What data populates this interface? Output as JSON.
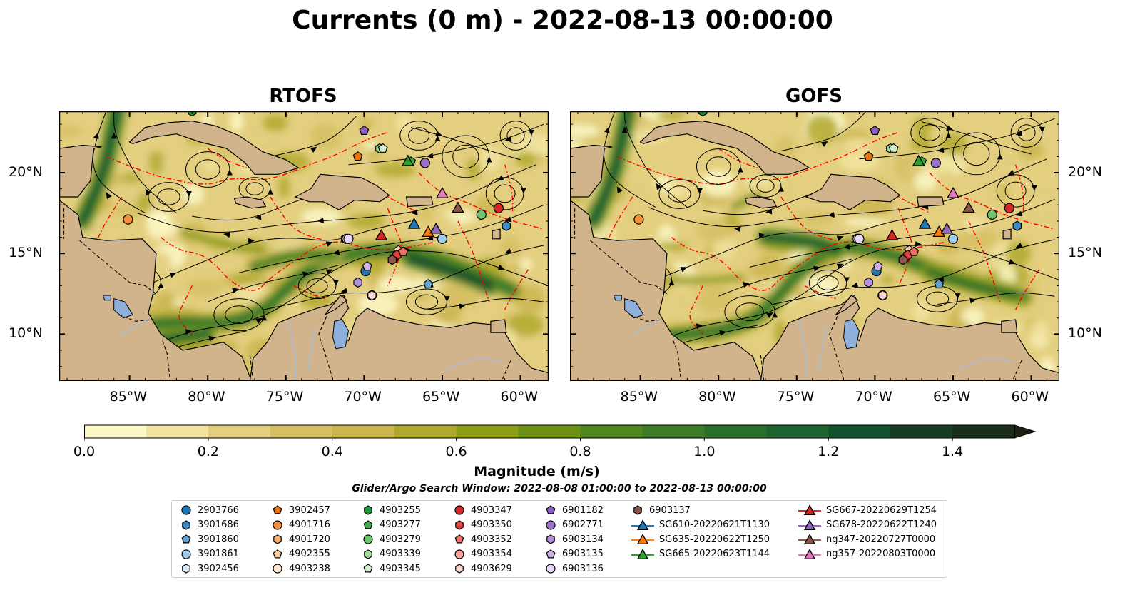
{
  "title": "Currents (0 m) - 2022-08-13 00:00:00",
  "panels": [
    {
      "title": "RTOFS",
      "variant": "rtofs"
    },
    {
      "title": "GOFS",
      "variant": "gofs"
    }
  ],
  "x_tick_labels": [
    "85°W",
    "80°W",
    "75°W",
    "70°W",
    "65°W",
    "60°W"
  ],
  "y_tick_labels": [
    "20°N",
    "15°N",
    "10°N"
  ],
  "colorbar": {
    "label": "Magnitude (m/s)",
    "tick_labels": [
      "0.0",
      "0.2",
      "0.4",
      "0.6",
      "0.8",
      "1.0",
      "1.2",
      "1.4"
    ],
    "colors": [
      "#fcf7c6",
      "#f1e4a0",
      "#e3cf7f",
      "#d6c064",
      "#cbb54f",
      "#b0a92e",
      "#8d9d14",
      "#6c9115",
      "#528621",
      "#3e7c29",
      "#2a6f2c",
      "#1c632f",
      "#12502c",
      "#163d23",
      "#182d1a",
      "#1b2214"
    ]
  },
  "colors": {
    "land": "#d2b48c",
    "lake": "#8fb0dd",
    "river": "#a8bed8",
    "eez_line": "#ff0000"
  },
  "search_window": "Glider/Argo Search Window: 2022-08-08 01:00:00 to 2022-08-13 00:00:00",
  "legend": {
    "columns": [
      [
        {
          "label": "2903766",
          "marker": "circle",
          "color": "#1f77b4"
        },
        {
          "label": "3901686",
          "marker": "hexagon",
          "color": "#3d8cc8"
        },
        {
          "label": "3901860",
          "marker": "pentagon",
          "color": "#5fa2d6"
        },
        {
          "label": "3901861",
          "marker": "circle",
          "color": "#9fcbed"
        },
        {
          "label": "3902456",
          "marker": "hexagon",
          "color": "#d7e9f7"
        }
      ],
      [
        {
          "label": "3902457",
          "marker": "pentagon",
          "color": "#e8730f"
        },
        {
          "label": "4901716",
          "marker": "circle",
          "color": "#f68f3c"
        },
        {
          "label": "4901720",
          "marker": "hexagon",
          "color": "#f8b070"
        },
        {
          "label": "4902355",
          "marker": "pentagon",
          "color": "#fbcfa2"
        },
        {
          "label": "4903238",
          "marker": "circle",
          "color": "#fde7cf"
        }
      ],
      [
        {
          "label": "4903255",
          "marker": "hexagon",
          "color": "#1f9a3a"
        },
        {
          "label": "4903277",
          "marker": "pentagon",
          "color": "#3aad4b"
        },
        {
          "label": "4903279",
          "marker": "circle",
          "color": "#6cc66a"
        },
        {
          "label": "4903339",
          "marker": "hexagon",
          "color": "#a2dc9a"
        },
        {
          "label": "4903345",
          "marker": "pentagon",
          "color": "#d6f1cf"
        }
      ],
      [
        {
          "label": "4903347",
          "marker": "circle",
          "color": "#d62728"
        },
        {
          "label": "4903350",
          "marker": "hexagon",
          "color": "#e0453f"
        },
        {
          "label": "4903352",
          "marker": "pentagon",
          "color": "#ec6f66"
        },
        {
          "label": "4903354",
          "marker": "circle",
          "color": "#f4a09a"
        },
        {
          "label": "4903629",
          "marker": "hexagon",
          "color": "#fbd3cf"
        }
      ],
      [
        {
          "label": "6901182",
          "marker": "pentagon",
          "color": "#8e5fbf"
        },
        {
          "label": "6902771",
          "marker": "circle",
          "color": "#9c6fcb"
        },
        {
          "label": "6903134",
          "marker": "hexagon",
          "color": "#b38fdc"
        },
        {
          "label": "6903135",
          "marker": "pentagon",
          "color": "#cdb1ec"
        },
        {
          "label": "6903136",
          "marker": "circle",
          "color": "#e6d6f7"
        }
      ],
      [
        {
          "label": "6903137",
          "marker": "hexagon",
          "color": "#8c564b"
        },
        {
          "label": "SG610-20220621T1130",
          "marker": "triangle-line",
          "color": "#1f77b4"
        },
        {
          "label": "SG635-20220622T1250",
          "marker": "triangle-line",
          "color": "#ff7f0e"
        },
        {
          "label": "SG665-20220623T1144",
          "marker": "triangle-line",
          "color": "#2ca02c"
        }
      ],
      [
        {
          "label": "SG667-20220629T1254",
          "marker": "triangle-line",
          "color": "#d62728"
        },
        {
          "label": "SG678-20220622T1240",
          "marker": "triangle-line",
          "color": "#9467bd"
        },
        {
          "label": "ng347-20220727T0000",
          "marker": "triangle-line",
          "color": "#8c564b"
        },
        {
          "label": "ng357-20220803T0000",
          "marker": "triangle-line",
          "color": "#e377c2"
        }
      ]
    ]
  },
  "chart_data": {
    "type": "map",
    "projection": "plate carree",
    "lon_range": [
      -89.5,
      -58.2
    ],
    "lat_range": [
      7.1,
      23.8
    ],
    "x_ticks": [
      -85,
      -80,
      -75,
      -70,
      -65,
      -60
    ],
    "y_ticks": [
      20,
      15,
      10
    ],
    "variable": "surface current magnitude (0 m), m/s",
    "colorbar_range": [
      0.0,
      1.5
    ],
    "colorbar_extend": "max",
    "panels": [
      "RTOFS",
      "GOFS"
    ],
    "markers": [
      {
        "id": "2903766",
        "lon": -69.9,
        "lat": 13.9
      },
      {
        "id": "3901686",
        "lon": -60.9,
        "lat": 16.7
      },
      {
        "id": "3901860",
        "lon": -65.9,
        "lat": 13.1
      },
      {
        "id": "3901861",
        "lon": -65.0,
        "lat": 15.9
      },
      {
        "id": "3902456",
        "lon": -71.2,
        "lat": 15.9
      },
      {
        "id": "3902457",
        "lon": -70.4,
        "lat": 21.0
      },
      {
        "id": "4901716",
        "lon": -85.1,
        "lat": 17.1
      },
      {
        "id": "4901720",
        "lon": -68.1,
        "lat": 14.7
      },
      {
        "id": "4902355",
        "lon": -67.8,
        "lat": 15.2
      },
      {
        "id": "4903238",
        "lon": -71.1,
        "lat": 15.9
      },
      {
        "id": "4903255",
        "lon": -81.0,
        "lat": 23.8
      },
      {
        "id": "4903277",
        "lon": -67.0,
        "lat": 20.7
      },
      {
        "id": "4903279",
        "lon": -62.5,
        "lat": 17.4
      },
      {
        "id": "4903339",
        "lon": -69.0,
        "lat": 21.5
      },
      {
        "id": "4903345",
        "lon": -68.8,
        "lat": 21.5
      },
      {
        "id": "4903347",
        "lon": -61.4,
        "lat": 17.8
      },
      {
        "id": "4903350",
        "lon": -67.9,
        "lat": 14.9
      },
      {
        "id": "4903352",
        "lon": -67.5,
        "lat": 15.1
      },
      {
        "id": "4903354",
        "lon": -69.5,
        "lat": 12.4
      },
      {
        "id": "4903629",
        "lon": -69.5,
        "lat": 12.4
      },
      {
        "id": "6901182",
        "lon": -70.0,
        "lat": 22.6
      },
      {
        "id": "6902771",
        "lon": -66.1,
        "lat": 20.6
      },
      {
        "id": "6903134",
        "lon": -70.4,
        "lat": 13.2
      },
      {
        "id": "6903135",
        "lon": -69.8,
        "lat": 14.2
      },
      {
        "id": "6903136",
        "lon": -71.0,
        "lat": 15.9
      },
      {
        "id": "6903137",
        "lon": -68.2,
        "lat": 14.6
      },
      {
        "id": "SG610-20220621T1130",
        "lon": -66.8,
        "lat": 16.8
      },
      {
        "id": "SG635-20220622T1250",
        "lon": -65.9,
        "lat": 16.3
      },
      {
        "id": "SG665-20220623T1144",
        "lon": -67.2,
        "lat": 20.7
      },
      {
        "id": "SG667-20220629T1254",
        "lon": -68.9,
        "lat": 16.1
      },
      {
        "id": "SG678-20220622T1240",
        "lon": -65.4,
        "lat": 16.5
      },
      {
        "id": "ng347-20220727T0000",
        "lon": -64.0,
        "lat": 17.8
      },
      {
        "id": "ng357-20220803T0000",
        "lon": -65.0,
        "lat": 18.7
      }
    ]
  }
}
